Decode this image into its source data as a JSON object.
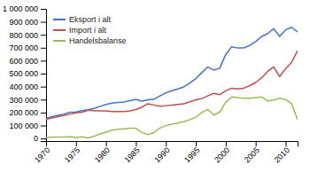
{
  "chart_data": {
    "type": "line",
    "x": [
      1970,
      1971,
      1972,
      1973,
      1974,
      1975,
      1976,
      1977,
      1978,
      1979,
      1980,
      1981,
      1982,
      1983,
      1984,
      1985,
      1986,
      1987,
      1988,
      1989,
      1990,
      1991,
      1992,
      1993,
      1994,
      1995,
      1996,
      1997,
      1998,
      1999,
      2000,
      2001,
      2002,
      2003,
      2004,
      2005,
      2006,
      2007,
      2008,
      2009,
      2010,
      2011,
      2012
    ],
    "series": [
      {
        "name": "Eksport i alt",
        "color": "#4472C4",
        "values": [
          155000,
          168000,
          178000,
          188000,
          202000,
          205000,
          215000,
          222000,
          232000,
          248000,
          262000,
          272000,
          278000,
          282000,
          292000,
          302000,
          288000,
          298000,
          303000,
          328000,
          352000,
          368000,
          382000,
          398000,
          428000,
          462000,
          508000,
          552000,
          528000,
          542000,
          648000,
          708000,
          698000,
          698000,
          718000,
          748000,
          788000,
          808000,
          848000,
          788000,
          838000,
          858000,
          822000
        ]
      },
      {
        "name": "Import i alt",
        "color": "#C0504D",
        "values": [
          148000,
          158000,
          168000,
          178000,
          188000,
          198000,
          202000,
          218000,
          215000,
          213000,
          213000,
          208000,
          208000,
          208000,
          213000,
          223000,
          242000,
          268000,
          258000,
          248000,
          253000,
          258000,
          263000,
          268000,
          283000,
          298000,
          308000,
          328000,
          348000,
          338000,
          368000,
          388000,
          383000,
          388000,
          408000,
          432000,
          468000,
          518000,
          552000,
          478000,
          538000,
          588000,
          678000
        ]
      },
      {
        "name": "Handelsbalanse",
        "color": "#9BBB59",
        "values": [
          7000,
          10000,
          10000,
          10000,
          14000,
          7000,
          13000,
          4000,
          17000,
          35000,
          49000,
          64000,
          70000,
          74000,
          79000,
          79000,
          46000,
          30000,
          45000,
          80000,
          99000,
          110000,
          119000,
          130000,
          145000,
          164000,
          200000,
          224000,
          180000,
          204000,
          280000,
          320000,
          315000,
          310000,
          310000,
          316000,
          320000,
          290000,
          296000,
          310000,
          300000,
          270000,
          144000
        ]
      }
    ],
    "xlim": [
      1970,
      2012
    ],
    "xticks": [
      1970,
      1975,
      1980,
      1985,
      1990,
      1995,
      2000,
      2005,
      2010
    ],
    "ylim": [
      -20000,
      1000000
    ],
    "yticks": [
      0,
      {
        "value": 100000,
        "label": "100 000"
      },
      {
        "value": 200000,
        "label": "200 000"
      },
      {
        "value": 300000,
        "label": "300 000"
      },
      {
        "value": 400000,
        "label": "400 000"
      },
      {
        "value": 500000,
        "label": "500 000"
      },
      {
        "value": 600000,
        "label": "600 000"
      },
      {
        "value": 700000,
        "label": "700 000"
      },
      {
        "value": 800000,
        "label": "800 000"
      },
      {
        "value": 900000,
        "label": "900 000"
      },
      {
        "value": 1000000,
        "label": "1 000 000"
      }
    ],
    "legend": "upper left",
    "grid": false
  }
}
